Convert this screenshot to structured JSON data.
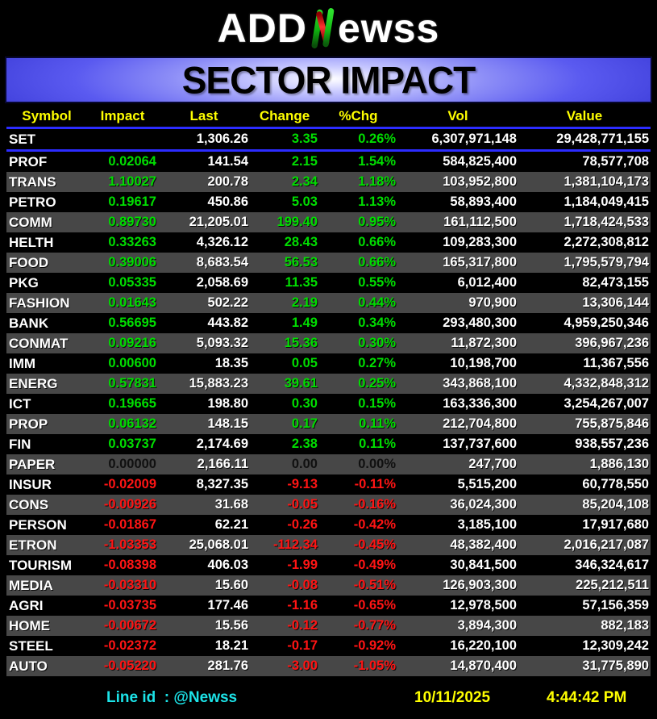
{
  "logo": {
    "prefix": "ADD",
    "n_letter": "N",
    "suffix": "ewss"
  },
  "banner": {
    "title": "SECTOR IMPACT"
  },
  "table": {
    "columns": [
      "Symbol",
      "Impact",
      "Last",
      "Change",
      "%Chg",
      "Vol",
      "Value"
    ],
    "index_row": {
      "symbol": "SET",
      "impact": "",
      "last": "1,306.26",
      "change": "3.35",
      "pchg": "0.26%",
      "vol": "6,307,971,148",
      "value": "29,428,771,155",
      "trend": "up"
    },
    "rows": [
      {
        "symbol": "PROF",
        "impact": "0.02064",
        "last": "141.54",
        "change": "2.15",
        "pchg": "1.54%",
        "vol": "584,825,400",
        "value": "78,577,708",
        "trend": "up"
      },
      {
        "symbol": "TRANS",
        "impact": "1.10027",
        "last": "200.78",
        "change": "2.34",
        "pchg": "1.18%",
        "vol": "103,952,800",
        "value": "1,381,104,173",
        "trend": "up"
      },
      {
        "symbol": "PETRO",
        "impact": "0.19617",
        "last": "450.86",
        "change": "5.03",
        "pchg": "1.13%",
        "vol": "58,893,400",
        "value": "1,184,049,415",
        "trend": "up"
      },
      {
        "symbol": "COMM",
        "impact": "0.89730",
        "last": "21,205.01",
        "change": "199.40",
        "pchg": "0.95%",
        "vol": "161,112,500",
        "value": "1,718,424,533",
        "trend": "up"
      },
      {
        "symbol": "HELTH",
        "impact": "0.33263",
        "last": "4,326.12",
        "change": "28.43",
        "pchg": "0.66%",
        "vol": "109,283,300",
        "value": "2,272,308,812",
        "trend": "up"
      },
      {
        "symbol": "FOOD",
        "impact": "0.39006",
        "last": "8,683.54",
        "change": "56.53",
        "pchg": "0.66%",
        "vol": "165,317,800",
        "value": "1,795,579,794",
        "trend": "up"
      },
      {
        "symbol": "PKG",
        "impact": "0.05335",
        "last": "2,058.69",
        "change": "11.35",
        "pchg": "0.55%",
        "vol": "6,012,400",
        "value": "82,473,155",
        "trend": "up"
      },
      {
        "symbol": "FASHION",
        "impact": "0.01643",
        "last": "502.22",
        "change": "2.19",
        "pchg": "0.44%",
        "vol": "970,900",
        "value": "13,306,144",
        "trend": "up"
      },
      {
        "symbol": "BANK",
        "impact": "0.56695",
        "last": "443.82",
        "change": "1.49",
        "pchg": "0.34%",
        "vol": "293,480,300",
        "value": "4,959,250,346",
        "trend": "up"
      },
      {
        "symbol": "CONMAT",
        "impact": "0.09216",
        "last": "5,093.32",
        "change": "15.36",
        "pchg": "0.30%",
        "vol": "11,872,300",
        "value": "396,967,236",
        "trend": "up"
      },
      {
        "symbol": "IMM",
        "impact": "0.00600",
        "last": "18.35",
        "change": "0.05",
        "pchg": "0.27%",
        "vol": "10,198,700",
        "value": "11,367,556",
        "trend": "up"
      },
      {
        "symbol": "ENERG",
        "impact": "0.57831",
        "last": "15,883.23",
        "change": "39.61",
        "pchg": "0.25%",
        "vol": "343,868,100",
        "value": "4,332,848,312",
        "trend": "up"
      },
      {
        "symbol": "ICT",
        "impact": "0.19665",
        "last": "198.80",
        "change": "0.30",
        "pchg": "0.15%",
        "vol": "163,336,300",
        "value": "3,254,267,007",
        "trend": "up"
      },
      {
        "symbol": "PROP",
        "impact": "0.06132",
        "last": "148.15",
        "change": "0.17",
        "pchg": "0.11%",
        "vol": "212,704,800",
        "value": "755,875,846",
        "trend": "up"
      },
      {
        "symbol": "FIN",
        "impact": "0.03737",
        "last": "2,174.69",
        "change": "2.38",
        "pchg": "0.11%",
        "vol": "137,737,600",
        "value": "938,557,236",
        "trend": "up"
      },
      {
        "symbol": "PAPER",
        "impact": "0.00000",
        "last": "2,166.11",
        "change": "0.00",
        "pchg": "0.00%",
        "vol": "247,700",
        "value": "1,886,130",
        "trend": "flat"
      },
      {
        "symbol": "INSUR",
        "impact": "-0.02009",
        "last": "8,327.35",
        "change": "-9.13",
        "pchg": "-0.11%",
        "vol": "5,515,200",
        "value": "60,778,550",
        "trend": "down"
      },
      {
        "symbol": "CONS",
        "impact": "-0.00926",
        "last": "31.68",
        "change": "-0.05",
        "pchg": "-0.16%",
        "vol": "36,024,300",
        "value": "85,204,108",
        "trend": "down"
      },
      {
        "symbol": "PERSON",
        "impact": "-0.01867",
        "last": "62.21",
        "change": "-0.26",
        "pchg": "-0.42%",
        "vol": "3,185,100",
        "value": "17,917,680",
        "trend": "down"
      },
      {
        "symbol": "ETRON",
        "impact": "-1.03353",
        "last": "25,068.01",
        "change": "-112.34",
        "pchg": "-0.45%",
        "vol": "48,382,400",
        "value": "2,016,217,087",
        "trend": "down"
      },
      {
        "symbol": "TOURISM",
        "impact": "-0.08398",
        "last": "406.03",
        "change": "-1.99",
        "pchg": "-0.49%",
        "vol": "30,841,500",
        "value": "346,324,617",
        "trend": "down"
      },
      {
        "symbol": "MEDIA",
        "impact": "-0.03310",
        "last": "15.60",
        "change": "-0.08",
        "pchg": "-0.51%",
        "vol": "126,903,300",
        "value": "225,212,511",
        "trend": "down"
      },
      {
        "symbol": "AGRI",
        "impact": "-0.03735",
        "last": "177.46",
        "change": "-1.16",
        "pchg": "-0.65%",
        "vol": "12,978,500",
        "value": "57,156,359",
        "trend": "down"
      },
      {
        "symbol": "HOME",
        "impact": "-0.00672",
        "last": "15.56",
        "change": "-0.12",
        "pchg": "-0.77%",
        "vol": "3,894,300",
        "value": "882,183",
        "trend": "down"
      },
      {
        "symbol": "STEEL",
        "impact": "-0.02372",
        "last": "18.21",
        "change": "-0.17",
        "pchg": "-0.92%",
        "vol": "16,220,100",
        "value": "12,309,242",
        "trend": "down"
      },
      {
        "symbol": "AUTO",
        "impact": "-0.05220",
        "last": "281.76",
        "change": "-3.00",
        "pchg": "-1.05%",
        "vol": "14,870,400",
        "value": "31,775,890",
        "trend": "down"
      }
    ]
  },
  "footer": {
    "line_id": "Line id  : @Newss",
    "date": "10/11/2025",
    "time": "4:44:42 PM"
  },
  "colors": {
    "positive": "#00dd00",
    "negative": "#ff1414",
    "neutral": "#101010",
    "header_yellow": "#ffff00",
    "separator_blue": "#2c2cff",
    "row_alt_gray": "#474747",
    "footer_cyan": "#1ce3e8"
  }
}
